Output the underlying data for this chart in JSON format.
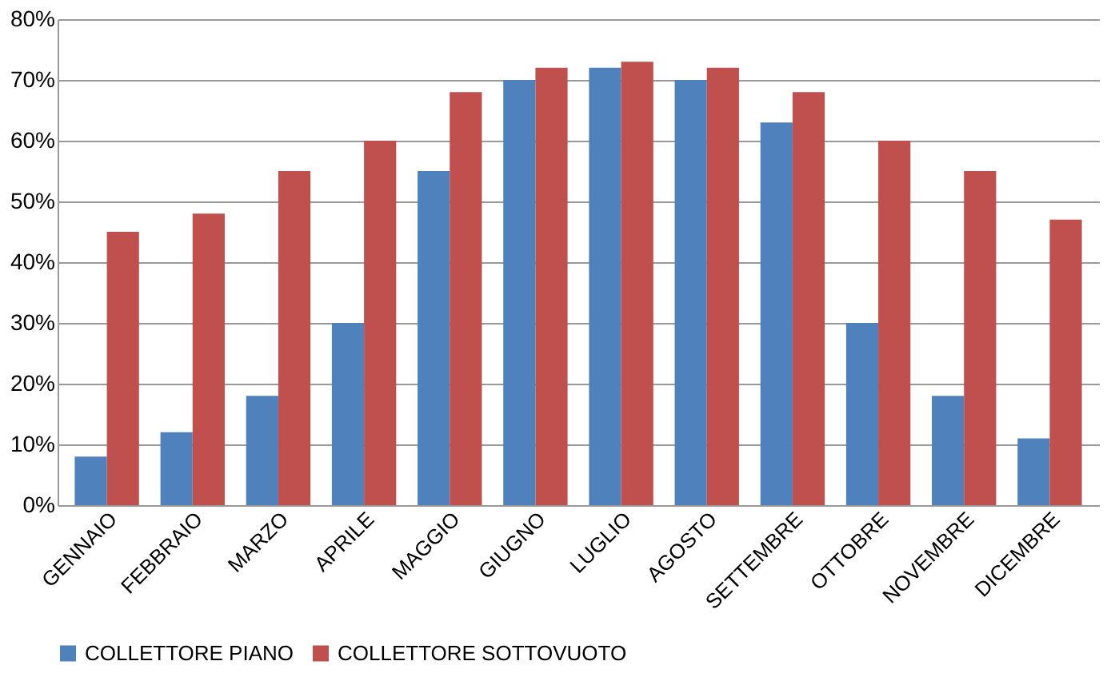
{
  "chart_data": {
    "type": "bar",
    "categories": [
      "GENNAIO",
      "FEBBRAIO",
      "MARZO",
      "APRILE",
      "MAGGIO",
      "GIUGNO",
      "LUGLIO",
      "AGOSTO",
      "SETTEMBRE",
      "OTTOBRE",
      "NOVEMBRE",
      "DICEMBRE"
    ],
    "series": [
      {
        "name": "COLLETTORE PIANO",
        "color": "#4f81bd",
        "values": [
          8,
          12,
          18,
          30,
          55,
          70,
          72,
          70,
          63,
          30,
          18,
          11
        ]
      },
      {
        "name": "COLLETTORE SOTTOVUOTO",
        "color": "#c0504d",
        "values": [
          45,
          48,
          55,
          60,
          68,
          72,
          73,
          72,
          68,
          60,
          55,
          47
        ]
      }
    ],
    "ylim": [
      0,
      80
    ],
    "yticks": [
      {
        "value": 0,
        "label": "0%"
      },
      {
        "value": 10,
        "label": "10%"
      },
      {
        "value": 20,
        "label": "20%"
      },
      {
        "value": 30,
        "label": "30%"
      },
      {
        "value": 40,
        "label": "40%"
      },
      {
        "value": 50,
        "label": "50%"
      },
      {
        "value": 60,
        "label": "60%"
      },
      {
        "value": 70,
        "label": "70%"
      },
      {
        "value": 80,
        "label": "80%"
      }
    ],
    "grid": "y",
    "legend": "bottom"
  }
}
